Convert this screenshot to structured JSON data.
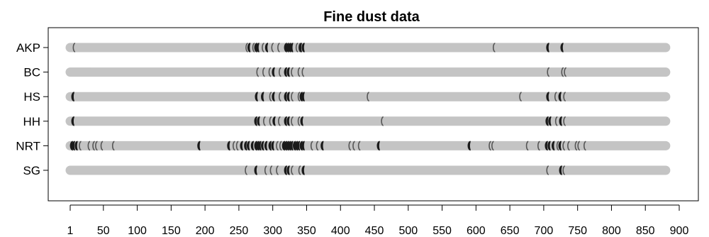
{
  "chart_data": {
    "type": "scatter",
    "title": "Fine dust data",
    "xlabel": "",
    "ylabel": "",
    "xlim": [
      1,
      880
    ],
    "x_ticks": [
      "1",
      "50",
      "100",
      "150",
      "200",
      "250",
      "300",
      "350",
      "400",
      "450",
      "500",
      "550",
      "600",
      "650",
      "700",
      "750",
      "800",
      "850",
      "900"
    ],
    "categories": [
      "AKP",
      "BC",
      "HS",
      "HH",
      "NRT",
      "SG"
    ],
    "colors": {
      "bar": "#c4c4c4",
      "mark_dark": "#1a1a1a",
      "mark_light": "#555555"
    },
    "series": [
      {
        "name": "AKP",
        "points": [
          {
            "x": 7,
            "w": "light"
          },
          {
            "x": 262,
            "w": "light"
          },
          {
            "x": 267,
            "w": "dark"
          },
          {
            "x": 272,
            "w": "light"
          },
          {
            "x": 277,
            "w": "dark"
          },
          {
            "x": 280,
            "w": "dark"
          },
          {
            "x": 286,
            "w": "light"
          },
          {
            "x": 293,
            "w": "dark"
          },
          {
            "x": 300,
            "w": "light"
          },
          {
            "x": 309,
            "w": "light"
          },
          {
            "x": 321,
            "w": "dark"
          },
          {
            "x": 324,
            "w": "dark"
          },
          {
            "x": 327,
            "w": "dark"
          },
          {
            "x": 330,
            "w": "dark"
          },
          {
            "x": 336,
            "w": "light"
          },
          {
            "x": 340,
            "w": "light"
          },
          {
            "x": 343,
            "w": "dark"
          },
          {
            "x": 347,
            "w": "dark"
          },
          {
            "x": 627,
            "w": "light"
          },
          {
            "x": 708,
            "w": "dark"
          },
          {
            "x": 729,
            "w": "dark"
          }
        ]
      },
      {
        "name": "BC",
        "points": [
          {
            "x": 278,
            "w": "light"
          },
          {
            "x": 287,
            "w": "light"
          },
          {
            "x": 296,
            "w": "light"
          },
          {
            "x": 303,
            "w": "dark"
          },
          {
            "x": 311,
            "w": "light"
          },
          {
            "x": 321,
            "w": "dark"
          },
          {
            "x": 325,
            "w": "dark"
          },
          {
            "x": 329,
            "w": "light"
          },
          {
            "x": 339,
            "w": "light"
          },
          {
            "x": 345,
            "w": "light"
          },
          {
            "x": 707,
            "w": "light"
          },
          {
            "x": 728,
            "w": "light"
          },
          {
            "x": 732,
            "w": "light"
          }
        ]
      },
      {
        "name": "HS",
        "points": [
          {
            "x": 7,
            "w": "dark"
          },
          {
            "x": 278,
            "w": "dark"
          },
          {
            "x": 287,
            "w": "dark"
          },
          {
            "x": 297,
            "w": "light"
          },
          {
            "x": 303,
            "w": "dark"
          },
          {
            "x": 311,
            "w": "light"
          },
          {
            "x": 321,
            "w": "dark"
          },
          {
            "x": 325,
            "w": "dark"
          },
          {
            "x": 329,
            "w": "light"
          },
          {
            "x": 339,
            "w": "light"
          },
          {
            "x": 344,
            "w": "dark"
          },
          {
            "x": 347,
            "w": "dark"
          },
          {
            "x": 441,
            "w": "light"
          },
          {
            "x": 666,
            "w": "light"
          },
          {
            "x": 708,
            "w": "dark"
          },
          {
            "x": 718,
            "w": "light"
          },
          {
            "x": 726,
            "w": "dark"
          },
          {
            "x": 731,
            "w": "light"
          }
        ]
      },
      {
        "name": "HH",
        "points": [
          {
            "x": 7,
            "w": "dark"
          },
          {
            "x": 277,
            "w": "dark"
          },
          {
            "x": 281,
            "w": "dark"
          },
          {
            "x": 288,
            "w": "light"
          },
          {
            "x": 297,
            "w": "light"
          },
          {
            "x": 304,
            "w": "dark"
          },
          {
            "x": 310,
            "w": "light"
          },
          {
            "x": 321,
            "w": "dark"
          },
          {
            "x": 325,
            "w": "dark"
          },
          {
            "x": 329,
            "w": "light"
          },
          {
            "x": 339,
            "w": "light"
          },
          {
            "x": 345,
            "w": "dark"
          },
          {
            "x": 462,
            "w": "light"
          },
          {
            "x": 707,
            "w": "dark"
          },
          {
            "x": 711,
            "w": "dark"
          },
          {
            "x": 719,
            "w": "light"
          },
          {
            "x": 727,
            "w": "dark"
          },
          {
            "x": 731,
            "w": "light"
          }
        ]
      },
      {
        "name": "NRT",
        "points": [
          {
            "x": 5,
            "w": "dark"
          },
          {
            "x": 8,
            "w": "dark"
          },
          {
            "x": 12,
            "w": "dark"
          },
          {
            "x": 16,
            "w": "light"
          },
          {
            "x": 29,
            "w": "light"
          },
          {
            "x": 36,
            "w": "light"
          },
          {
            "x": 40,
            "w": "light"
          },
          {
            "x": 48,
            "w": "light"
          },
          {
            "x": 65,
            "w": "light"
          },
          {
            "x": 193,
            "w": "dark"
          },
          {
            "x": 237,
            "w": "dark"
          },
          {
            "x": 243,
            "w": "light"
          },
          {
            "x": 248,
            "w": "light"
          },
          {
            "x": 256,
            "w": "dark"
          },
          {
            "x": 262,
            "w": "dark"
          },
          {
            "x": 266,
            "w": "dark"
          },
          {
            "x": 272,
            "w": "dark"
          },
          {
            "x": 277,
            "w": "dark"
          },
          {
            "x": 280,
            "w": "dark"
          },
          {
            "x": 283,
            "w": "dark"
          },
          {
            "x": 287,
            "w": "dark"
          },
          {
            "x": 292,
            "w": "dark"
          },
          {
            "x": 298,
            "w": "dark"
          },
          {
            "x": 302,
            "w": "dark"
          },
          {
            "x": 307,
            "w": "light"
          },
          {
            "x": 312,
            "w": "light"
          },
          {
            "x": 318,
            "w": "dark"
          },
          {
            "x": 321,
            "w": "dark"
          },
          {
            "x": 324,
            "w": "dark"
          },
          {
            "x": 327,
            "w": "dark"
          },
          {
            "x": 330,
            "w": "dark"
          },
          {
            "x": 334,
            "w": "dark"
          },
          {
            "x": 337,
            "w": "dark"
          },
          {
            "x": 340,
            "w": "dark"
          },
          {
            "x": 344,
            "w": "dark"
          },
          {
            "x": 347,
            "w": "dark"
          },
          {
            "x": 358,
            "w": "light"
          },
          {
            "x": 366,
            "w": "light"
          },
          {
            "x": 375,
            "w": "dark"
          },
          {
            "x": 414,
            "w": "light"
          },
          {
            "x": 420,
            "w": "light"
          },
          {
            "x": 428,
            "w": "light"
          },
          {
            "x": 458,
            "w": "dark"
          },
          {
            "x": 592,
            "w": "dark"
          },
          {
            "x": 621,
            "w": "light"
          },
          {
            "x": 625,
            "w": "light"
          },
          {
            "x": 676,
            "w": "light"
          },
          {
            "x": 693,
            "w": "light"
          },
          {
            "x": 706,
            "w": "dark"
          },
          {
            "x": 710,
            "w": "dark"
          },
          {
            "x": 716,
            "w": "dark"
          },
          {
            "x": 721,
            "w": "light"
          },
          {
            "x": 726,
            "w": "dark"
          },
          {
            "x": 730,
            "w": "light"
          },
          {
            "x": 737,
            "w": "light"
          },
          {
            "x": 748,
            "w": "light"
          },
          {
            "x": 752,
            "w": "light"
          },
          {
            "x": 761,
            "w": "light"
          }
        ]
      },
      {
        "name": "SG",
        "points": [
          {
            "x": 261,
            "w": "light"
          },
          {
            "x": 277,
            "w": "dark"
          },
          {
            "x": 290,
            "w": "light"
          },
          {
            "x": 298,
            "w": "light"
          },
          {
            "x": 307,
            "w": "light"
          },
          {
            "x": 321,
            "w": "dark"
          },
          {
            "x": 325,
            "w": "dark"
          },
          {
            "x": 329,
            "w": "light"
          },
          {
            "x": 340,
            "w": "light"
          },
          {
            "x": 347,
            "w": "dark"
          },
          {
            "x": 706,
            "w": "light"
          },
          {
            "x": 727,
            "w": "dark"
          },
          {
            "x": 730,
            "w": "light"
          }
        ]
      }
    ]
  }
}
